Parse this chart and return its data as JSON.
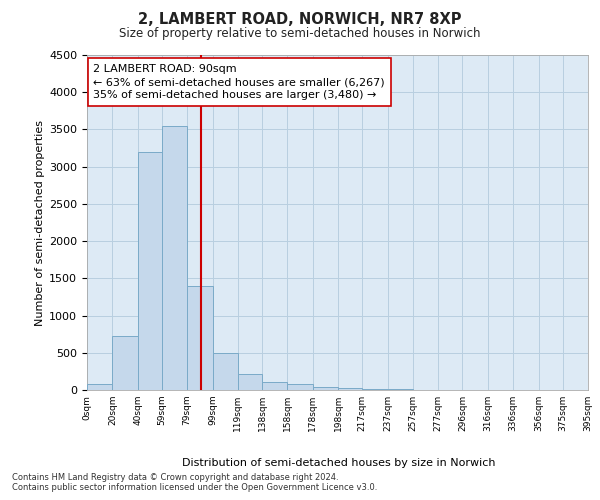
{
  "title1": "2, LAMBERT ROAD, NORWICH, NR7 8XP",
  "title2": "Size of property relative to semi-detached houses in Norwich",
  "xlabel": "Distribution of semi-detached houses by size in Norwich",
  "ylabel": "Number of semi-detached properties",
  "footnote1": "Contains HM Land Registry data © Crown copyright and database right 2024.",
  "footnote2": "Contains public sector information licensed under the Open Government Licence v3.0.",
  "bar_color": "#c5d8eb",
  "bar_edge_color": "#7aaac8",
  "grid_color": "#b8cfe0",
  "marker_color": "#cc0000",
  "marker_value": 90,
  "annotation_text": "2 LAMBERT ROAD: 90sqm\n← 63% of semi-detached houses are smaller (6,267)\n35% of semi-detached houses are larger (3,480) →",
  "annotation_box_color": "#ffffff",
  "annotation_box_edge": "#cc0000",
  "bin_edges": [
    0,
    20,
    40,
    59,
    79,
    99,
    119,
    138,
    158,
    178,
    198,
    217,
    237,
    257,
    277,
    296,
    316,
    336,
    356,
    375,
    395
  ],
  "bin_labels": [
    "0sqm",
    "20sqm",
    "40sqm",
    "59sqm",
    "79sqm",
    "99sqm",
    "119sqm",
    "138sqm",
    "158sqm",
    "178sqm",
    "198sqm",
    "217sqm",
    "237sqm",
    "257sqm",
    "277sqm",
    "296sqm",
    "316sqm",
    "336sqm",
    "356sqm",
    "375sqm",
    "395sqm"
  ],
  "bar_heights": [
    75,
    725,
    3200,
    3550,
    1400,
    500,
    220,
    110,
    75,
    40,
    25,
    20,
    10,
    5,
    5,
    5,
    5,
    5,
    5,
    5
  ],
  "ylim": [
    0,
    4500
  ],
  "yticks": [
    0,
    500,
    1000,
    1500,
    2000,
    2500,
    3000,
    3500,
    4000,
    4500
  ],
  "plot_bg_color": "#ddeaf5"
}
